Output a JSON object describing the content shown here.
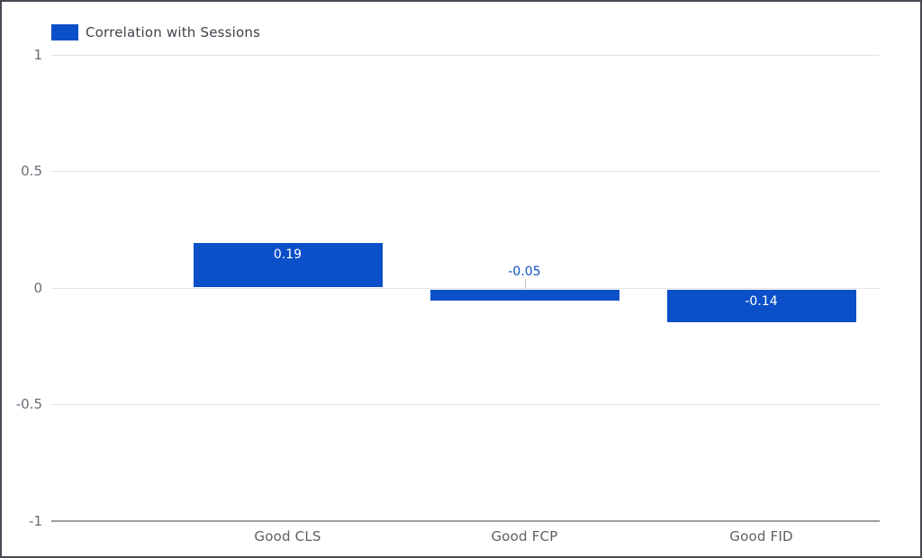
{
  "chart_data": {
    "type": "bar",
    "title": "",
    "legend": {
      "label": "Correlation with Sessions",
      "position": "top-left"
    },
    "points": [
      {
        "category": "Good CLS",
        "value": 0.19,
        "label": "0.19"
      },
      {
        "category": "Good FCP",
        "value": -0.05,
        "label": "-0.05"
      },
      {
        "category": "Good FID",
        "value": -0.14,
        "label": "-0.14"
      }
    ],
    "y_axis": {
      "min": -1,
      "max": 1,
      "ticks": [
        {
          "value": 1,
          "label": "1"
        },
        {
          "value": 0.5,
          "label": "0.5"
        },
        {
          "value": 0,
          "label": "0"
        },
        {
          "value": -0.5,
          "label": "-0.5"
        },
        {
          "value": -1,
          "label": "-1"
        }
      ]
    },
    "grid": true,
    "colors": {
      "bar": "#0b50c8",
      "grid_line": "#e4e4e4",
      "axis_baseline": "#9a9da3",
      "tick_text": "#686d76",
      "category_text": "#5b6067",
      "legend_text": "#3f434c",
      "value_label_inside": "#ffffff",
      "value_label_outside": "#0b50c8",
      "callout_line": "#c2c2c2",
      "frame_border": "#474a52"
    }
  }
}
